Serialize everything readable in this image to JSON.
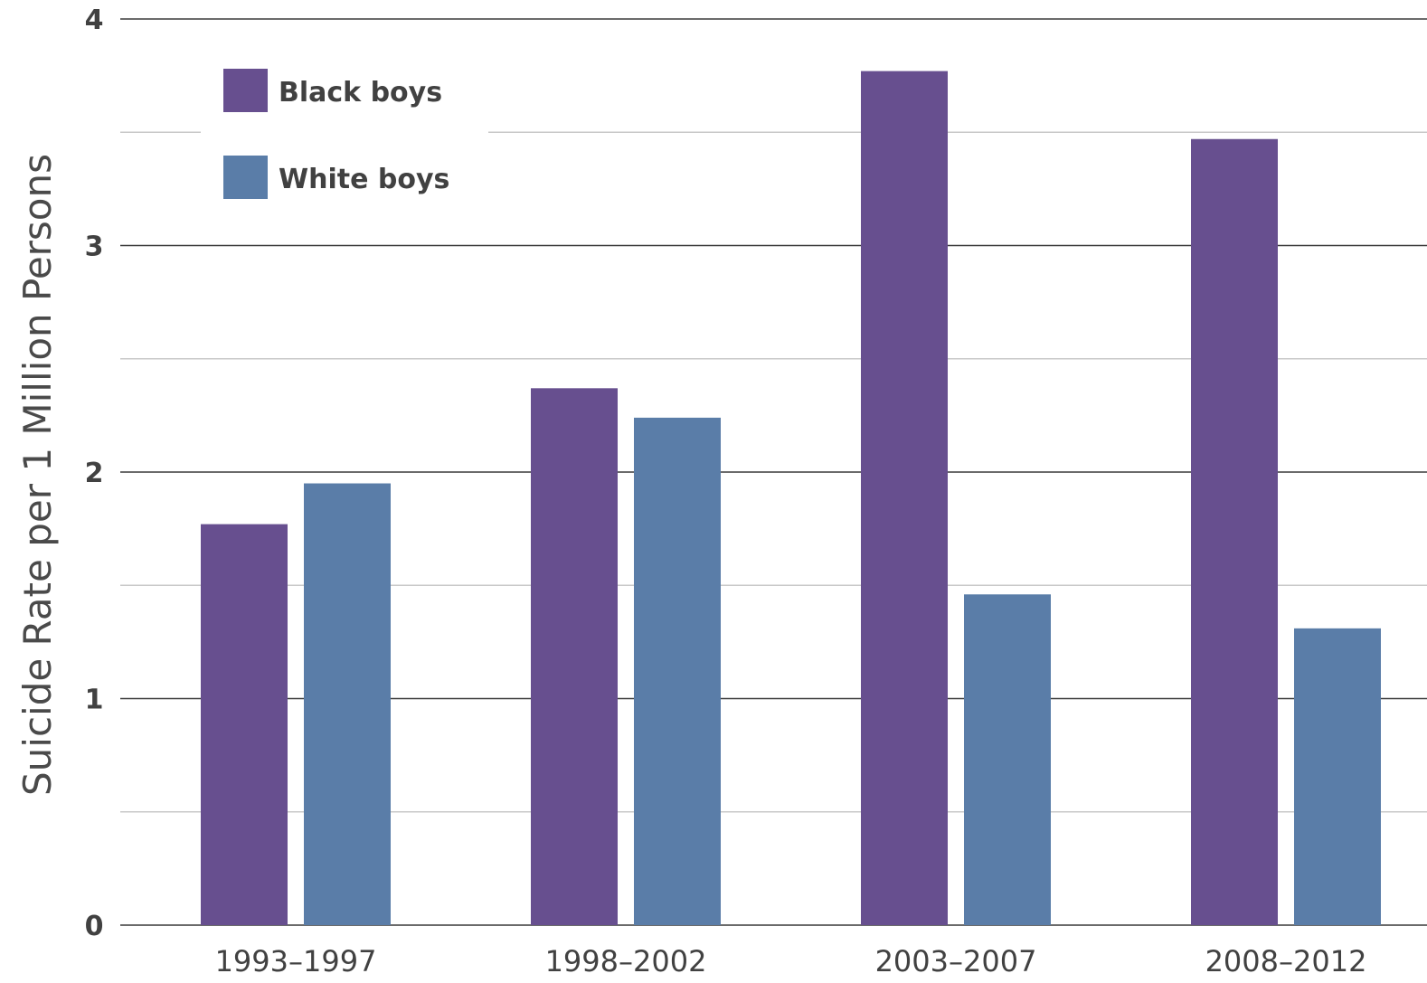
{
  "chart_data": {
    "type": "bar",
    "categories": [
      "1993–1997",
      "1998–2002",
      "2003–2007",
      "2008–2012"
    ],
    "series": [
      {
        "name": "Black boys",
        "values": [
          1.77,
          2.37,
          3.77,
          3.47
        ],
        "color": "#674f8f"
      },
      {
        "name": "White boys",
        "values": [
          1.95,
          2.24,
          1.46,
          1.31
        ],
        "color": "#5a7da8"
      }
    ],
    "title": "",
    "xlabel": "",
    "ylabel": "Suicide Rate per 1 Million Persons",
    "ylim": [
      0,
      4
    ],
    "yticks": [
      "0",
      "1",
      "2",
      "3",
      "4"
    ],
    "grid": true,
    "legend_position": "top-left"
  }
}
